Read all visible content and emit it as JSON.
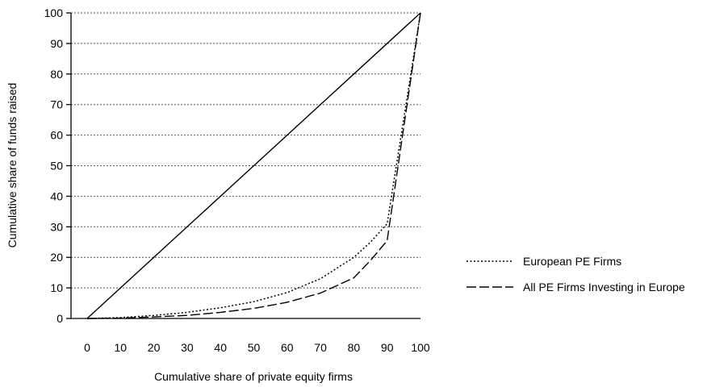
{
  "chart_data": {
    "type": "line",
    "title": "",
    "xlabel": "Cumulative share of private equity firms",
    "ylabel": "Cumulative share of funds raised",
    "xlim": [
      0,
      100
    ],
    "ylim": [
      0,
      100
    ],
    "x_ticks": [
      "0",
      "10",
      "20",
      "30",
      "40",
      "50",
      "60",
      "70",
      "80",
      "90",
      "100"
    ],
    "y_ticks": [
      "0",
      "10",
      "20",
      "30",
      "40",
      "50",
      "60",
      "70",
      "80",
      "90",
      "100"
    ],
    "grid": "horizontal dotted",
    "legend_position": "right",
    "reference_line": {
      "style": "solid",
      "x": [
        0,
        100
      ],
      "y": [
        0,
        100
      ]
    },
    "series": [
      {
        "name": "European PE Firms",
        "style": "dotted",
        "x": [
          0,
          10,
          20,
          30,
          40,
          50,
          60,
          70,
          80,
          85,
          90,
          100
        ],
        "y": [
          0,
          0.3,
          1,
          2,
          3.5,
          5.5,
          8.5,
          13,
          20,
          25,
          31,
          100
        ]
      },
      {
        "name": "All PE Firms Investing in Europe",
        "style": "dashed",
        "x": [
          0,
          10,
          20,
          30,
          40,
          50,
          60,
          70,
          80,
          85,
          90,
          100
        ],
        "y": [
          0,
          0.1,
          0.5,
          1,
          2,
          3.3,
          5.3,
          8.3,
          13.3,
          19,
          25.5,
          100
        ]
      }
    ]
  }
}
